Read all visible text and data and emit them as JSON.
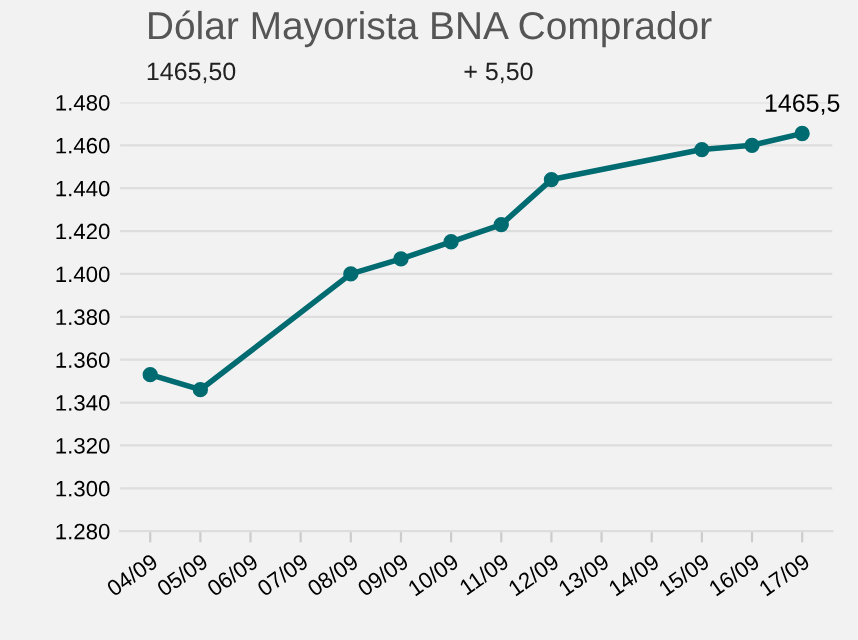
{
  "chart_data": {
    "type": "line",
    "title": "Dólar Mayorista BNA Comprador",
    "annotations": [
      "1465,50",
      "+ 5,50"
    ],
    "categories": [
      "04/09",
      "05/09",
      "06/09",
      "07/09",
      "08/09",
      "09/09",
      "10/09",
      "11/09",
      "12/09",
      "13/09",
      "14/09",
      "15/09",
      "16/09",
      "17/09"
    ],
    "series": [
      {
        "color": "#006b70",
        "values": [
          1353,
          1346,
          null,
          null,
          1400,
          1407,
          1415,
          1423,
          1444,
          null,
          null,
          1458,
          1460,
          1465.5
        ],
        "value_labels": [
          null,
          null,
          null,
          null,
          null,
          null,
          null,
          null,
          null,
          null,
          null,
          null,
          null,
          "1465,5"
        ]
      }
    ],
    "ylim": [
      1280,
      1480
    ],
    "yticks": [
      {
        "value": 1280,
        "label": "1.280"
      },
      {
        "value": 1300,
        "label": "1.300"
      },
      {
        "value": 1320,
        "label": "1.320"
      },
      {
        "value": 1340,
        "label": "1.340"
      },
      {
        "value": 1360,
        "label": "1.360"
      },
      {
        "value": 1380,
        "label": "1.380"
      },
      {
        "value": 1400,
        "label": "1.400"
      },
      {
        "value": 1420,
        "label": "1.420"
      },
      {
        "value": 1440,
        "label": "1.440"
      },
      {
        "value": 1460,
        "label": "1.460"
      },
      {
        "value": 1480,
        "label": "1.480"
      }
    ],
    "grid": "y",
    "marker": "circle",
    "line_style": "solid"
  }
}
